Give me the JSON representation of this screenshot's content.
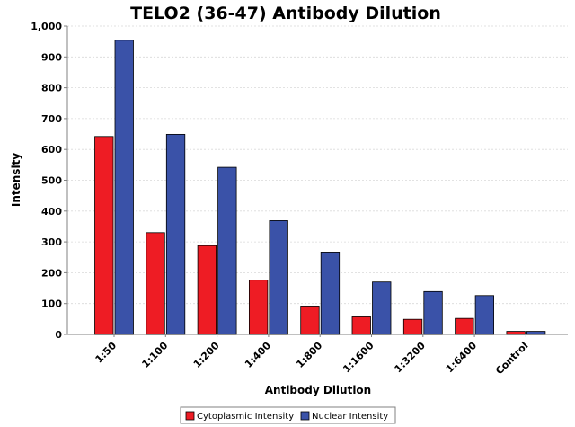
{
  "chart_data": {
    "type": "bar",
    "title": "TELO2 (36-47) Antibody Dilution",
    "xlabel": "Antibody Dilution",
    "ylabel": "Intensity",
    "ylim": [
      0,
      1000
    ],
    "yticks": [
      0,
      100,
      200,
      300,
      400,
      500,
      600,
      700,
      800,
      900,
      1000
    ],
    "ytick_labels": [
      "0",
      "100",
      "200",
      "300",
      "400",
      "500",
      "600",
      "700",
      "800",
      "900",
      "1,000"
    ],
    "grid": true,
    "legend_position": "bottom-center",
    "categories": [
      "1:50",
      "1:100",
      "1:200",
      "1:400",
      "1:800",
      "1:1600",
      "1:3200",
      "1:6400",
      "Control"
    ],
    "series": [
      {
        "name": "Cytoplasmic Intensity",
        "color": "#ee1c24",
        "values": [
          642,
          330,
          288,
          176,
          92,
          57,
          49,
          52,
          10
        ]
      },
      {
        "name": "Nuclear Intensity",
        "color": "#3a52a8",
        "values": [
          954,
          649,
          542,
          369,
          267,
          170,
          139,
          126,
          10
        ]
      }
    ]
  }
}
